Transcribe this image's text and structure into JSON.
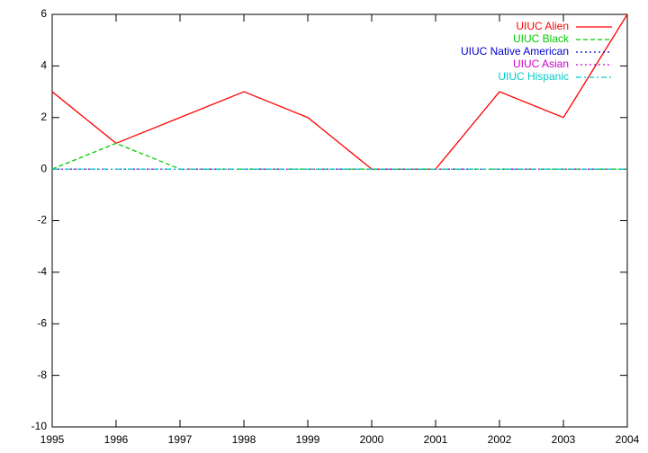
{
  "chart_data": {
    "type": "line",
    "x": [
      1995,
      1996,
      1997,
      1998,
      1999,
      2000,
      2001,
      2002,
      2003,
      2004
    ],
    "series": [
      {
        "name": "UIUC Alien",
        "color": "#ff0000",
        "dash": "solid",
        "values": [
          3,
          1,
          2,
          3,
          2,
          0,
          0,
          3,
          2,
          6
        ]
      },
      {
        "name": "UIUC Black",
        "color": "#00cc00",
        "dash": "dashed",
        "values": [
          0,
          1,
          0,
          0,
          0,
          0,
          0,
          0,
          0,
          0
        ]
      },
      {
        "name": "UIUC Native American",
        "color": "#0000cc",
        "dash": "dotted",
        "values": [
          0,
          0,
          0,
          0,
          0,
          0,
          0,
          0,
          0,
          0
        ]
      },
      {
        "name": "UIUC Asian",
        "color": "#cc00cc",
        "dash": "dotted",
        "values": [
          0,
          0,
          0,
          0,
          0,
          0,
          0,
          0,
          0,
          0
        ]
      },
      {
        "name": "UIUC Hispanic",
        "color": "#00cccc",
        "dash": "dash-dot",
        "values": [
          0,
          0,
          0,
          0,
          0,
          0,
          0,
          0,
          0,
          0
        ]
      }
    ],
    "xlim": [
      1995,
      2004
    ],
    "xticks": [
      1995,
      1996,
      1997,
      1998,
      1999,
      2000,
      2001,
      2002,
      2003,
      2004
    ],
    "ylim": [
      -10,
      6
    ],
    "yticks": [
      -10,
      -8,
      -6,
      -4,
      -2,
      0,
      2,
      4,
      6
    ],
    "grid": false,
    "legend": "top-right"
  }
}
